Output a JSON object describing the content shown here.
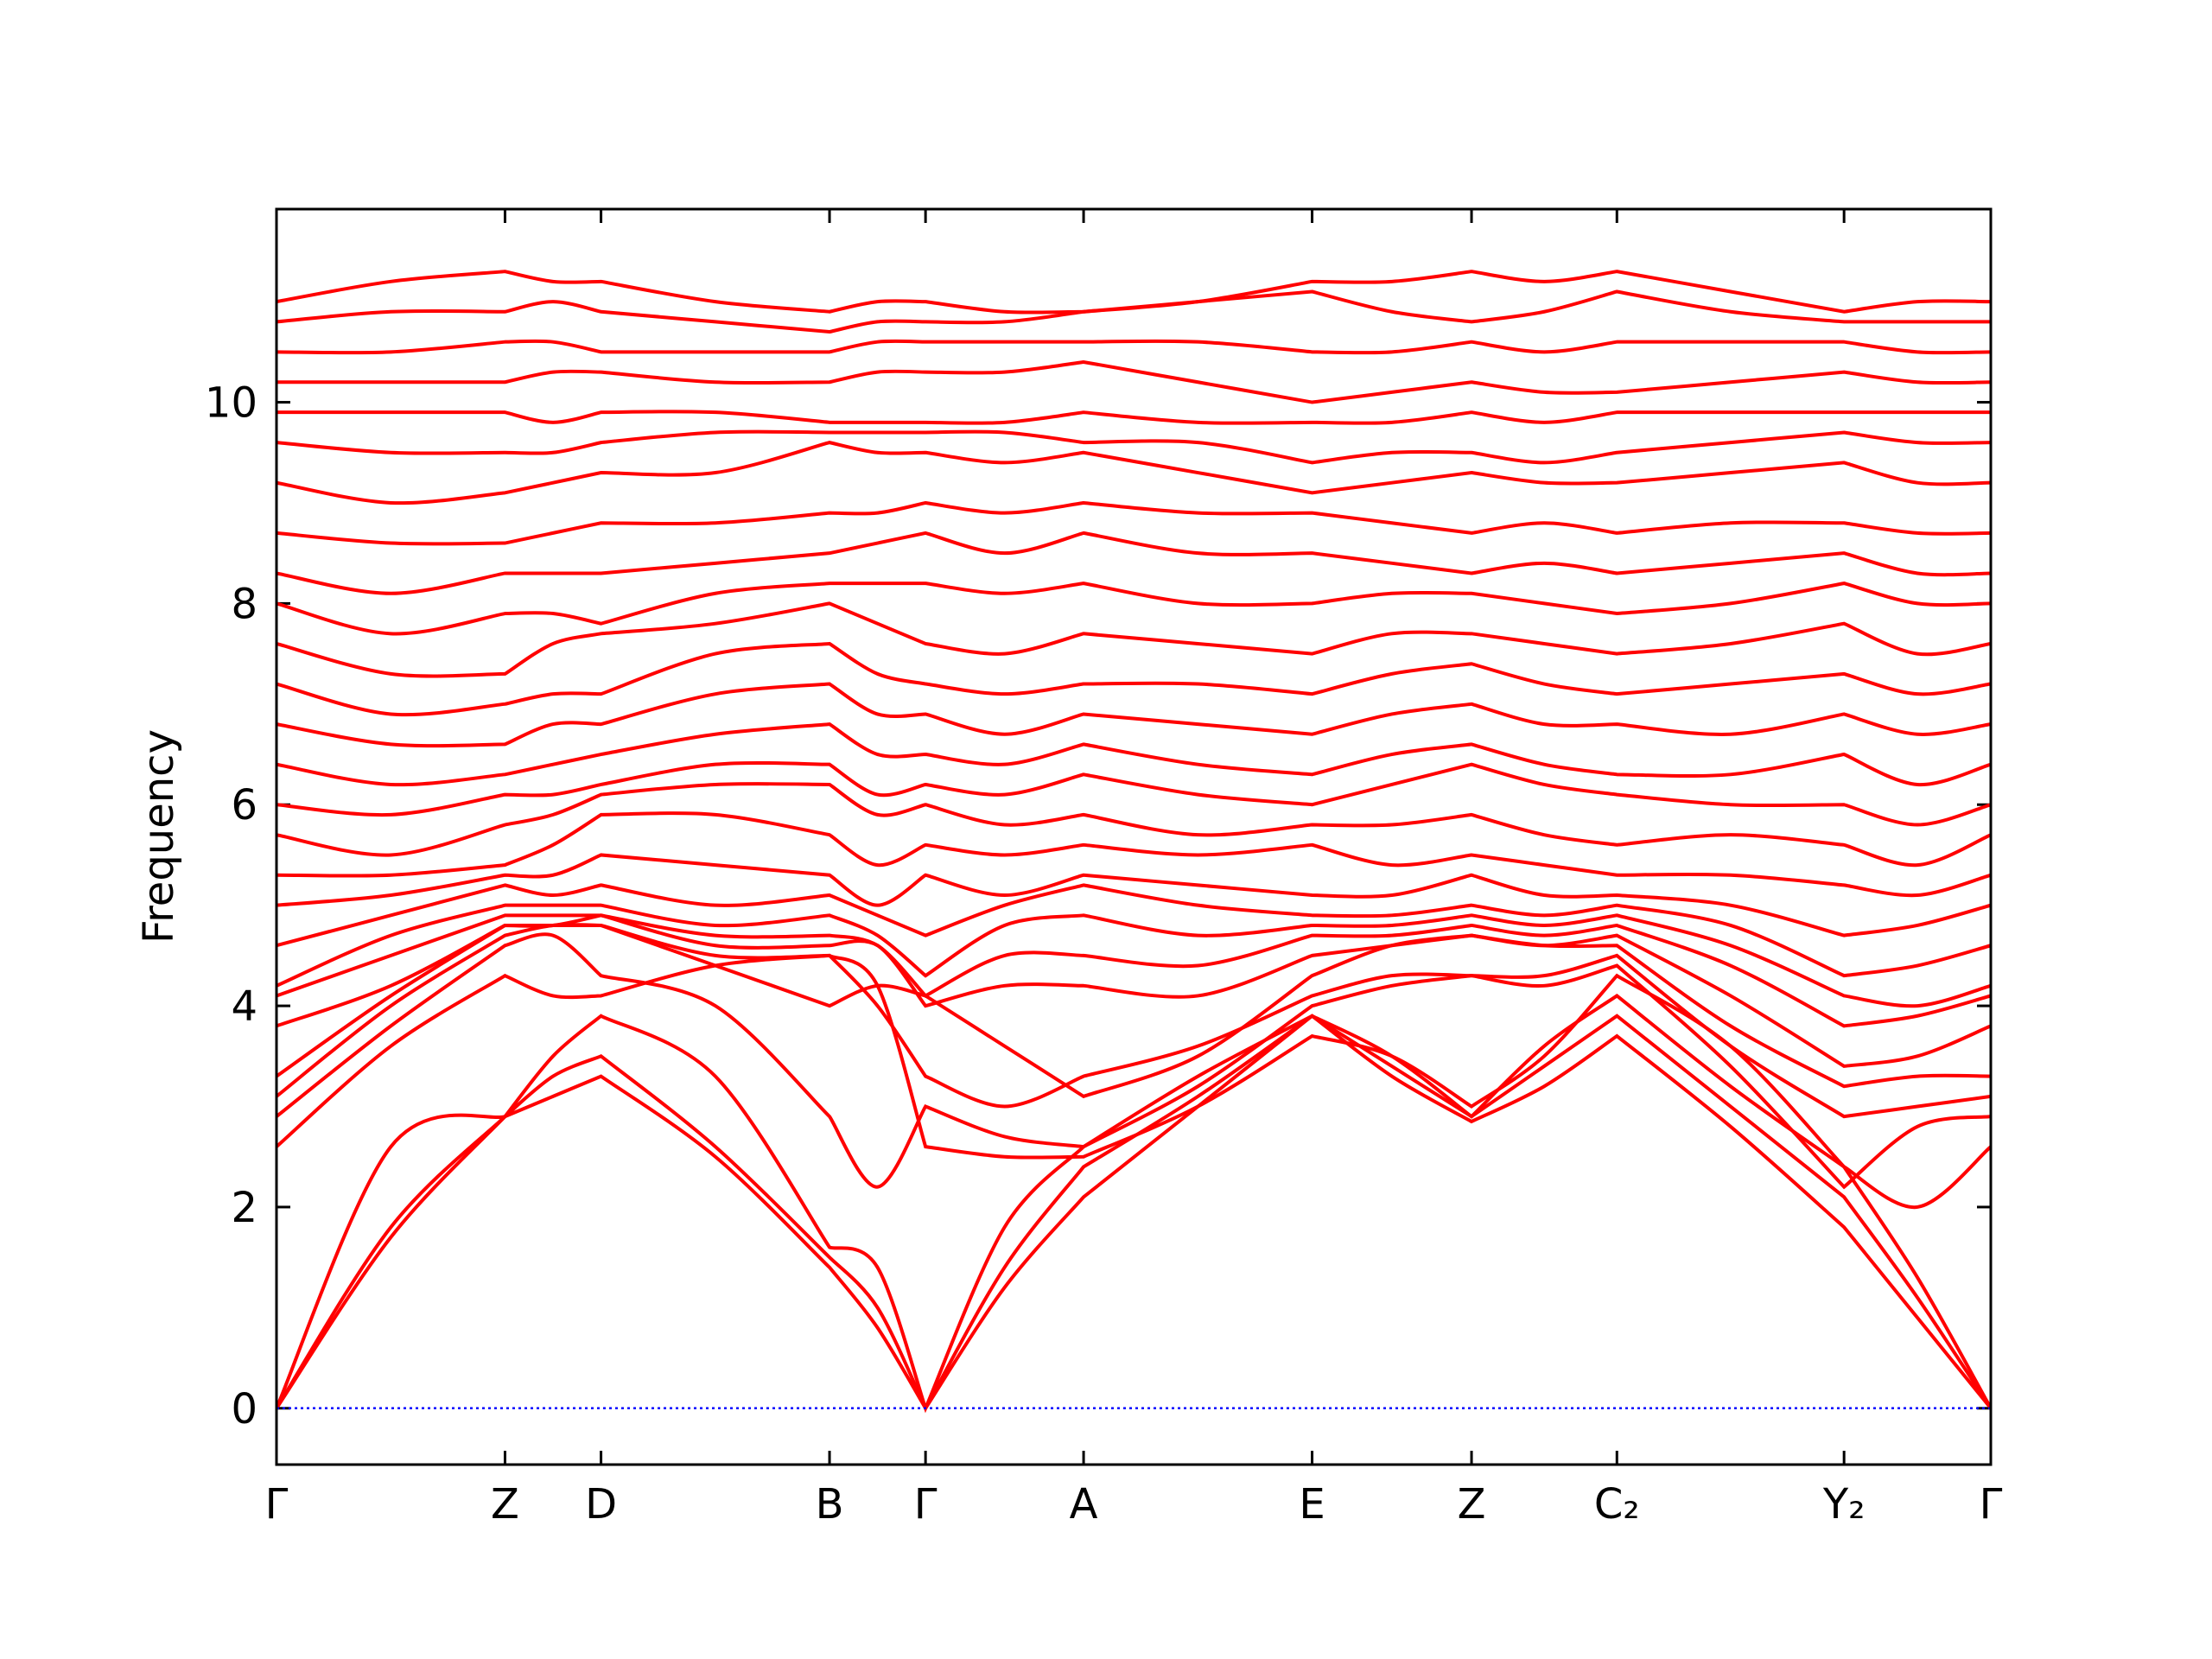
{
  "chart_data": {
    "type": "line",
    "ylabel": "Frequency",
    "color": "#ff0000",
    "hline": 0,
    "hline_color": "#0000ff",
    "xlim": [
      0,
      1
    ],
    "ylim": [
      -0.56,
      11.92
    ],
    "xticks": [
      {
        "value": 0,
        "label": "Γ"
      },
      {
        "value": 0.1333,
        "label": "Z"
      },
      {
        "value": 0.1893,
        "label": "D"
      },
      {
        "value": 0.3226,
        "label": "B"
      },
      {
        "value": 0.3786,
        "label": "Γ"
      },
      {
        "value": 0.4708,
        "label": "A"
      },
      {
        "value": 0.6041,
        "label": "E"
      },
      {
        "value": 0.6971,
        "label": "Z"
      },
      {
        "value": 0.7819,
        "label": "C₂"
      },
      {
        "value": 0.9144,
        "label": "Y₂"
      },
      {
        "value": 1,
        "label": "Γ"
      }
    ],
    "yticks": [
      0,
      2,
      4,
      6,
      8,
      10
    ],
    "x": [
      0,
      0.0667,
      0.1333,
      0.1613,
      0.1893,
      0.256,
      0.3226,
      0.3506,
      0.3786,
      0.4247,
      0.4708,
      0.5375,
      0.6041,
      0.6506,
      0.6971,
      0.7395,
      0.7819,
      0.8482,
      0.9144,
      0.9572,
      1
    ],
    "series": [
      {
        "values": [
          0,
          1.7,
          2.9,
          3.1,
          3.3,
          2.5,
          1.4,
          0.8,
          0,
          1.2,
          2.1,
          3.0,
          3.9,
          3.3,
          2.85,
          3.2,
          3.7,
          2.8,
          1.8,
          0.9,
          0
        ]
      },
      {
        "values": [
          0,
          1.8,
          2.9,
          3.3,
          3.5,
          2.6,
          1.5,
          1.0,
          0,
          1.4,
          2.4,
          3.1,
          3.9,
          3.4,
          2.9,
          3.4,
          3.9,
          3.0,
          2.1,
          1.1,
          0
        ]
      },
      {
        "values": [
          0,
          2.6,
          2.9,
          3.5,
          3.9,
          3.3,
          1.6,
          1.4,
          0,
          1.8,
          2.6,
          3.3,
          3.9,
          3.5,
          2.9,
          3.6,
          4.1,
          3.2,
          2.4,
          1.3,
          0
        ]
      },
      {
        "values": [
          2.6,
          3.6,
          4.3,
          4.1,
          4.1,
          4.4,
          4.5,
          4.2,
          2.6,
          2.5,
          2.5,
          3.0,
          3.7,
          3.5,
          3.0,
          3.5,
          4.3,
          3.6,
          2.4,
          2.0,
          2.6
        ]
      },
      {
        "values": [
          2.9,
          3.8,
          4.6,
          4.7,
          4.3,
          4.0,
          2.9,
          2.2,
          3.0,
          2.7,
          2.6,
          3.2,
          4.0,
          4.2,
          4.3,
          4.2,
          4.4,
          3.4,
          2.2,
          2.8,
          2.9
        ]
      },
      {
        "values": [
          3.1,
          4.0,
          4.7,
          4.8,
          4.8,
          4.5,
          4.5,
          4.0,
          3.3,
          3.0,
          3.3,
          3.6,
          4.1,
          4.3,
          4.3,
          4.3,
          4.5,
          3.6,
          2.9,
          3.0,
          3.1
        ]
      },
      {
        "values": [
          3.3,
          4.1,
          4.8,
          4.8,
          4.8,
          4.4,
          4.0,
          4.2,
          4.1,
          3.6,
          3.1,
          3.5,
          4.3,
          4.6,
          4.7,
          4.6,
          4.6,
          3.8,
          3.2,
          3.3,
          3.3
        ]
      },
      {
        "values": [
          3.8,
          4.2,
          4.8,
          4.8,
          4.9,
          4.6,
          4.6,
          4.6,
          4.0,
          4.2,
          4.2,
          4.1,
          4.5,
          4.6,
          4.7,
          4.6,
          4.7,
          4.1,
          3.4,
          3.5,
          3.8
        ]
      },
      {
        "values": [
          4.1,
          4.5,
          4.9,
          4.9,
          4.9,
          4.7,
          4.7,
          4.6,
          4.1,
          4.5,
          4.5,
          4.4,
          4.7,
          4.7,
          4.8,
          4.7,
          4.8,
          4.4,
          3.8,
          3.9,
          4.1
        ]
      },
      {
        "values": [
          4.2,
          4.7,
          5.0,
          5.0,
          5.0,
          4.8,
          4.9,
          4.7,
          4.3,
          4.8,
          4.9,
          4.7,
          4.8,
          4.8,
          4.9,
          4.8,
          4.9,
          4.6,
          4.1,
          4.0,
          4.2
        ]
      },
      {
        "values": [
          4.6,
          4.9,
          5.2,
          5.1,
          5.2,
          5.0,
          5.1,
          4.9,
          4.7,
          5.0,
          5.2,
          5.0,
          4.9,
          4.9,
          5.0,
          4.9,
          5.0,
          4.8,
          4.3,
          4.4,
          4.6
        ]
      },
      {
        "values": [
          5.0,
          5.1,
          5.3,
          5.3,
          5.5,
          5.4,
          5.3,
          5.0,
          5.3,
          5.1,
          5.3,
          5.2,
          5.1,
          5.1,
          5.3,
          5.1,
          5.1,
          5.0,
          4.7,
          4.8,
          5.0
        ]
      },
      {
        "values": [
          5.3,
          5.3,
          5.4,
          5.6,
          5.9,
          5.9,
          5.7,
          5.4,
          5.6,
          5.5,
          5.6,
          5.5,
          5.6,
          5.4,
          5.5,
          5.4,
          5.3,
          5.3,
          5.2,
          5.1,
          5.3
        ]
      },
      {
        "values": [
          5.7,
          5.5,
          5.8,
          5.9,
          6.1,
          6.2,
          6.2,
          5.9,
          6.0,
          5.8,
          5.9,
          5.7,
          5.8,
          5.8,
          5.9,
          5.7,
          5.6,
          5.7,
          5.6,
          5.4,
          5.7
        ]
      },
      {
        "values": [
          6.0,
          5.9,
          6.1,
          6.1,
          6.2,
          6.4,
          6.4,
          6.1,
          6.2,
          6.1,
          6.3,
          6.1,
          6.0,
          6.2,
          6.4,
          6.2,
          6.1,
          6.0,
          6.0,
          5.8,
          6.0
        ]
      },
      {
        "values": [
          6.4,
          6.2,
          6.3,
          6.4,
          6.5,
          6.7,
          6.8,
          6.5,
          6.5,
          6.4,
          6.6,
          6.4,
          6.3,
          6.5,
          6.6,
          6.4,
          6.3,
          6.3,
          6.5,
          6.2,
          6.4
        ]
      },
      {
        "values": [
          6.8,
          6.6,
          6.6,
          6.8,
          6.8,
          7.1,
          7.2,
          6.9,
          6.9,
          6.7,
          6.9,
          6.8,
          6.7,
          6.9,
          7.0,
          6.8,
          6.8,
          6.7,
          6.9,
          6.7,
          6.8
        ]
      },
      {
        "values": [
          7.2,
          6.9,
          7.0,
          7.1,
          7.1,
          7.5,
          7.6,
          7.3,
          7.2,
          7.1,
          7.2,
          7.2,
          7.1,
          7.3,
          7.4,
          7.2,
          7.1,
          7.2,
          7.3,
          7.1,
          7.2
        ]
      },
      {
        "values": [
          7.6,
          7.3,
          7.3,
          7.6,
          7.7,
          7.8,
          8.0,
          7.8,
          7.6,
          7.5,
          7.7,
          7.6,
          7.5,
          7.7,
          7.7,
          7.6,
          7.5,
          7.6,
          7.8,
          7.5,
          7.6
        ]
      },
      {
        "values": [
          8.0,
          7.7,
          7.9,
          7.9,
          7.8,
          8.1,
          8.2,
          8.2,
          8.2,
          8.1,
          8.2,
          8.0,
          8.0,
          8.1,
          8.1,
          8.0,
          7.9,
          8.0,
          8.2,
          8.0,
          8.0
        ]
      },
      {
        "values": [
          8.3,
          8.1,
          8.3,
          8.3,
          8.3,
          8.4,
          8.5,
          8.6,
          8.7,
          8.5,
          8.7,
          8.5,
          8.5,
          8.4,
          8.3,
          8.4,
          8.3,
          8.4,
          8.5,
          8.3,
          8.3
        ]
      },
      {
        "values": [
          8.7,
          8.6,
          8.6,
          8.7,
          8.8,
          8.8,
          8.9,
          8.9,
          9.0,
          8.9,
          9.0,
          8.9,
          8.9,
          8.8,
          8.7,
          8.8,
          8.7,
          8.8,
          8.8,
          8.7,
          8.7
        ]
      },
      {
        "values": [
          9.2,
          9.0,
          9.1,
          9.2,
          9.3,
          9.3,
          9.6,
          9.5,
          9.5,
          9.4,
          9.5,
          9.3,
          9.1,
          9.2,
          9.3,
          9.2,
          9.2,
          9.3,
          9.4,
          9.2,
          9.2
        ]
      },
      {
        "values": [
          9.6,
          9.5,
          9.5,
          9.5,
          9.6,
          9.7,
          9.7,
          9.7,
          9.7,
          9.7,
          9.6,
          9.6,
          9.4,
          9.5,
          9.5,
          9.4,
          9.5,
          9.6,
          9.7,
          9.6,
          9.6
        ]
      },
      {
        "values": [
          9.9,
          9.9,
          9.9,
          9.8,
          9.9,
          9.9,
          9.8,
          9.8,
          9.8,
          9.8,
          9.9,
          9.8,
          9.8,
          9.8,
          9.9,
          9.8,
          9.9,
          9.9,
          9.9,
          9.9,
          9.9
        ]
      },
      {
        "values": [
          10.2,
          10.2,
          10.2,
          10.3,
          10.3,
          10.2,
          10.2,
          10.3,
          10.3,
          10.3,
          10.4,
          10.2,
          10.0,
          10.1,
          10.2,
          10.1,
          10.1,
          10.2,
          10.3,
          10.2,
          10.2
        ]
      },
      {
        "values": [
          10.5,
          10.5,
          10.6,
          10.6,
          10.5,
          10.5,
          10.5,
          10.6,
          10.6,
          10.6,
          10.6,
          10.6,
          10.5,
          10.5,
          10.6,
          10.5,
          10.6,
          10.6,
          10.6,
          10.5,
          10.5
        ]
      },
      {
        "values": [
          10.8,
          10.9,
          10.9,
          11.0,
          10.9,
          10.8,
          10.7,
          10.8,
          10.8,
          10.8,
          10.9,
          11.0,
          11.1,
          10.9,
          10.8,
          10.9,
          11.1,
          10.9,
          10.8,
          10.8,
          10.8
        ]
      },
      {
        "values": [
          11.0,
          11.2,
          11.3,
          11.2,
          11.2,
          11.0,
          10.9,
          11.0,
          11.0,
          10.9,
          10.9,
          11.0,
          11.2,
          11.2,
          11.3,
          11.2,
          11.3,
          11.1,
          10.9,
          11.0,
          11.0
        ]
      }
    ]
  }
}
